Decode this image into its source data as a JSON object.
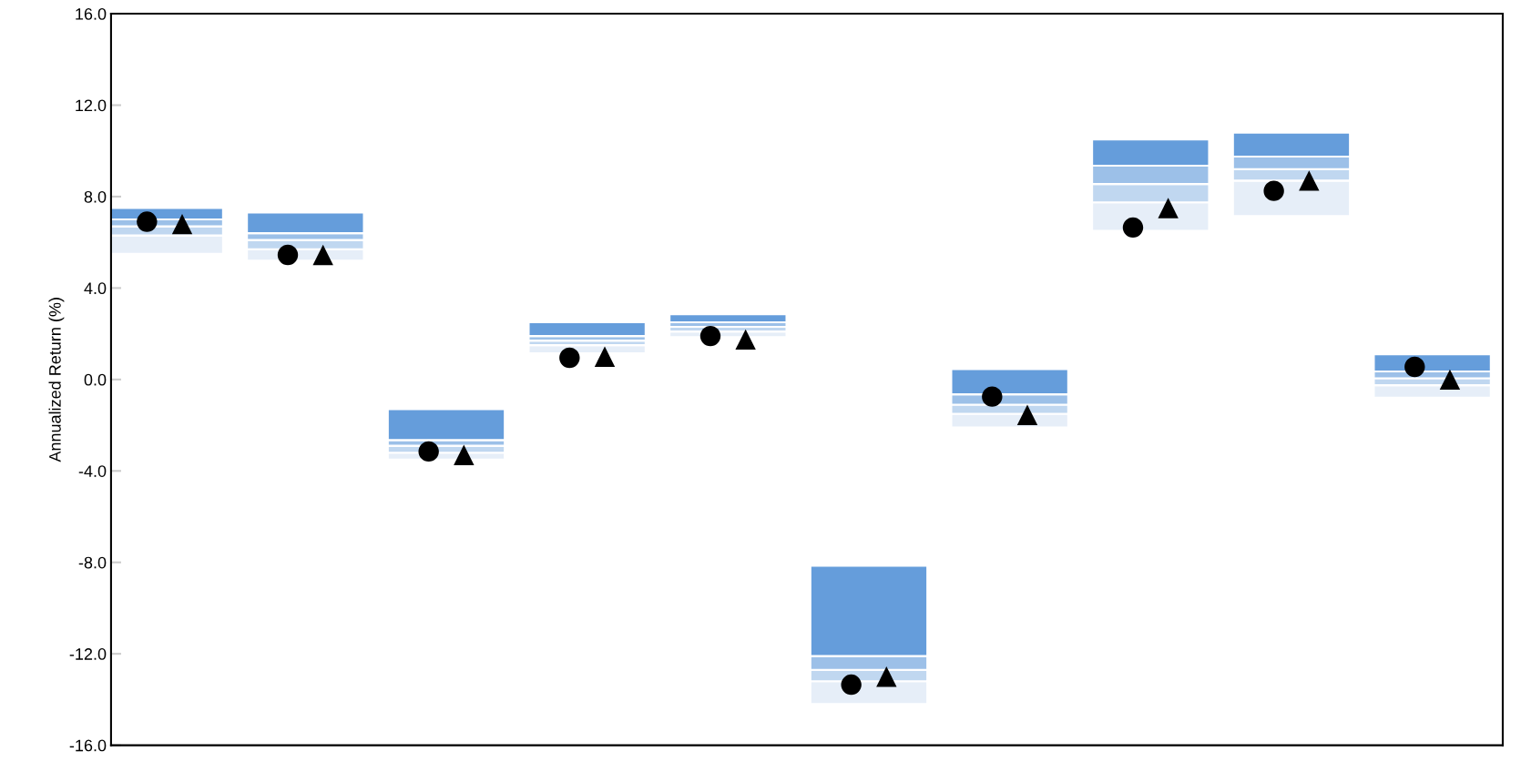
{
  "chart_data": {
    "type": "bar",
    "ylabel": "Annualized Return (%)",
    "categories": [
      null,
      null,
      null,
      null,
      null,
      null,
      null,
      null,
      null,
      null
    ],
    "series": [
      {
        "color": "#e6eef8",
        "base": [
          5.5,
          5.2,
          -3.5,
          1.15,
          1.85,
          -14.2,
          -2.1,
          6.5,
          7.15,
          -0.8
        ],
        "values": [
          0.8,
          0.5,
          0.3,
          0.35,
          0.25,
          1.0,
          0.6,
          1.25,
          1.55,
          0.55
        ]
      },
      {
        "color": "#c0d7f0",
        "base": [
          6.3,
          5.7,
          -3.2,
          1.5,
          2.1,
          -13.2,
          -1.5,
          7.75,
          8.7,
          -0.25
        ],
        "values": [
          0.4,
          0.4,
          0.3,
          0.2,
          0.2,
          0.5,
          0.4,
          0.8,
          0.5,
          0.3
        ]
      },
      {
        "color": "#9cc0e8",
        "base": [
          6.7,
          6.1,
          -2.9,
          1.7,
          2.3,
          -12.7,
          -1.1,
          8.55,
          9.2,
          0.05
        ],
        "values": [
          0.3,
          0.3,
          0.25,
          0.2,
          0.2,
          0.6,
          0.45,
          0.8,
          0.55,
          0.3
        ]
      },
      {
        "color": "#659ddb",
        "base": [
          7.0,
          6.4,
          -2.65,
          1.9,
          2.5,
          -12.1,
          -0.65,
          9.35,
          9.75,
          0.35
        ],
        "values": [
          0.5,
          0.9,
          1.35,
          0.6,
          0.35,
          3.95,
          1.1,
          1.15,
          1.05,
          0.75
        ]
      },
      {
        "type": "scatter",
        "color": "#000000",
        "marker": "circle",
        "values": [
          6.9,
          5.45,
          -3.15,
          0.95,
          1.9,
          -13.35,
          -0.75,
          6.65,
          8.25,
          0.55
        ]
      },
      {
        "type": "scatter",
        "color": "#000000",
        "marker": "triangle",
        "values": [
          6.8,
          5.45,
          -3.3,
          1.0,
          1.75,
          -13.0,
          -1.55,
          7.5,
          8.7,
          0.0
        ]
      }
    ],
    "ylim": [
      -16,
      16
    ],
    "yticks": [
      {
        "value": -16,
        "label": "-16.0"
      },
      {
        "value": -12,
        "label": "-12.0"
      },
      {
        "value": -8,
        "label": "-8.0"
      },
      {
        "value": -4,
        "label": "-4.0"
      },
      {
        "value": 0,
        "label": "0.0"
      },
      {
        "value": 4,
        "label": "4.0"
      },
      {
        "value": 8,
        "label": "8.0"
      },
      {
        "value": 12,
        "label": "12.0"
      },
      {
        "value": 16,
        "label": "16.0"
      }
    ],
    "tick_labels": "y"
  }
}
